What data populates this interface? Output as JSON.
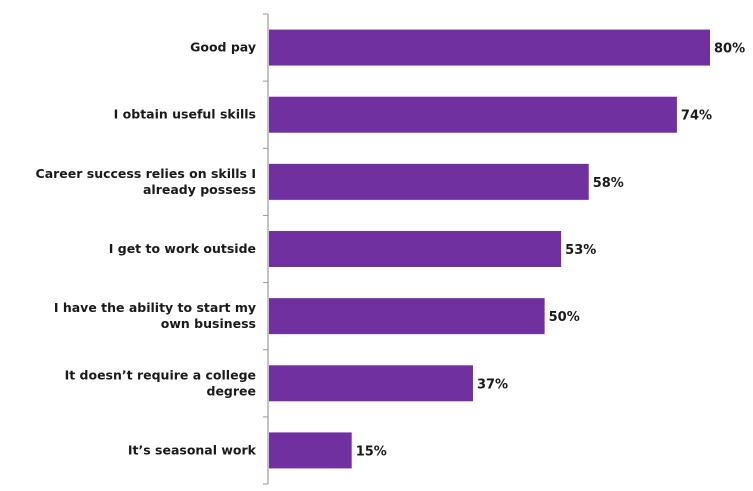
{
  "chart_data": {
    "type": "bar",
    "orientation": "horizontal",
    "title": "",
    "xlabel": "",
    "ylabel": "",
    "xlim": [
      0,
      80
    ],
    "grid": false,
    "legend": "none",
    "bar_color": "#7030A0",
    "categories": [
      [
        "Good pay"
      ],
      [
        "I obtain useful skills"
      ],
      [
        "Career success relies on skills I",
        "already possess"
      ],
      [
        "I get to work outside"
      ],
      [
        "I have the ability to start my",
        "own business"
      ],
      [
        "It doesn’t require a college",
        "degree"
      ],
      [
        "It’s seasonal work"
      ]
    ],
    "values": [
      80,
      74,
      58,
      53,
      50,
      37,
      15
    ],
    "value_labels": [
      "80%",
      "74%",
      "58%",
      "53%",
      "50%",
      "37%",
      "15%"
    ]
  }
}
